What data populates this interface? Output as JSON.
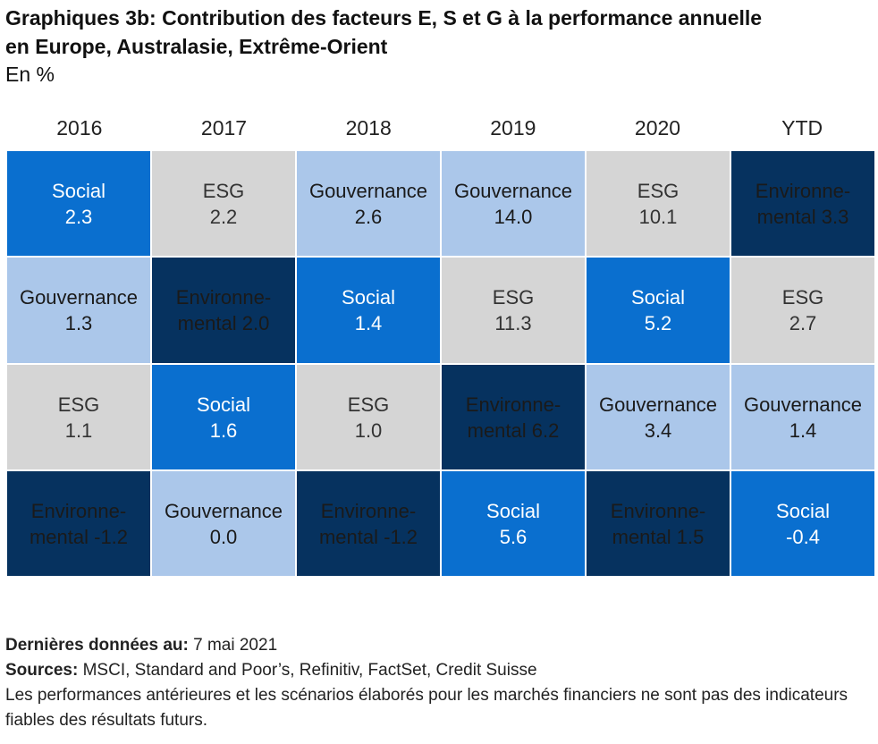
{
  "header": {
    "title_line1": "Graphiques 3b: Contribution des facteurs E, S et G à la performance annuelle",
    "title_line2": "en Europe, Australasie, Extrême-Orient",
    "subtitle": "En %"
  },
  "colors": {
    "social": "#0a6fcf",
    "esg": "#d5d5d5",
    "gouvernance": "#abc7ea",
    "environnemental": "#06325f"
  },
  "chart_data": {
    "type": "table",
    "title": "Graphiques 3b: Contribution des facteurs E, S et G à la performance annuelle en Europe, Australasie, Extrême-Orient",
    "unit": "En %",
    "columns": [
      "2016",
      "2017",
      "2018",
      "2019",
      "2020",
      "YTD"
    ],
    "rows": [
      [
        {
          "factor": "social",
          "label": "Social",
          "value_text": "2.3",
          "value": 2.3
        },
        {
          "factor": "esg",
          "label": "ESG",
          "value_text": "2.2",
          "value": 2.2
        },
        {
          "factor": "gouvernance",
          "label": "Gouvernance",
          "value_text": "2.6",
          "value": 2.6
        },
        {
          "factor": "gouvernance",
          "label": "Gouvernance",
          "value_text": "14.0",
          "value": 14.0
        },
        {
          "factor": "esg",
          "label": "ESG",
          "value_text": "10.1",
          "value": 10.1
        },
        {
          "factor": "environnemental",
          "label": "Environne-\nmental 3.3",
          "value_text": "",
          "value": 3.3
        }
      ],
      [
        {
          "factor": "gouvernance",
          "label": "Gouvernance",
          "value_text": "1.3",
          "value": 1.3
        },
        {
          "factor": "environnemental",
          "label": "Environne-\nmental 2.0",
          "value_text": "",
          "value": 2.0
        },
        {
          "factor": "social",
          "label": "Social",
          "value_text": "1.4",
          "value": 1.4
        },
        {
          "factor": "esg",
          "label": "ESG",
          "value_text": "11.3",
          "value": 11.3
        },
        {
          "factor": "social",
          "label": "Social",
          "value_text": "5.2",
          "value": 5.2
        },
        {
          "factor": "esg",
          "label": "ESG",
          "value_text": "2.7",
          "value": 2.7
        }
      ],
      [
        {
          "factor": "esg",
          "label": "ESG",
          "value_text": "1.1",
          "value": 1.1
        },
        {
          "factor": "social",
          "label": "Social",
          "value_text": "1.6",
          "value": 1.6
        },
        {
          "factor": "esg",
          "label": "ESG",
          "value_text": "1.0",
          "value": 1.0
        },
        {
          "factor": "environnemental",
          "label": "Environne-\nmental 6.2",
          "value_text": "",
          "value": 6.2
        },
        {
          "factor": "gouvernance",
          "label": "Gouvernance",
          "value_text": "3.4",
          "value": 3.4
        },
        {
          "factor": "gouvernance",
          "label": "Gouvernance",
          "value_text": "1.4",
          "value": 1.4
        }
      ],
      [
        {
          "factor": "environnemental",
          "label": "Environne-\nmental -1.2",
          "value_text": "",
          "value": -1.2
        },
        {
          "factor": "gouvernance",
          "label": "Gouvernance",
          "value_text": "0.0",
          "value": 0.0
        },
        {
          "factor": "environnemental",
          "label": "Environne-\nmental -1.2",
          "value_text": "",
          "value": -1.2
        },
        {
          "factor": "social",
          "label": "Social",
          "value_text": "5.6",
          "value": 5.6
        },
        {
          "factor": "environnemental",
          "label": "Environne-\nmental 1.5",
          "value_text": "",
          "value": 1.5
        },
        {
          "factor": "social",
          "label": "Social",
          "value_text": "-0.4",
          "value": -0.4
        }
      ]
    ]
  },
  "footer": {
    "date_label": "Dernières données au:",
    "date_value": " 7 mai 2021",
    "sources_label": "Sources:",
    "sources_value": " MSCI, Standard and Poor’s, Refinitiv, FactSet, Credit Suisse",
    "disclaimer": "Les performances antérieures et les scénarios élaborés pour les marchés financiers ne sont pas des indicateurs fiables des résultats futurs."
  }
}
